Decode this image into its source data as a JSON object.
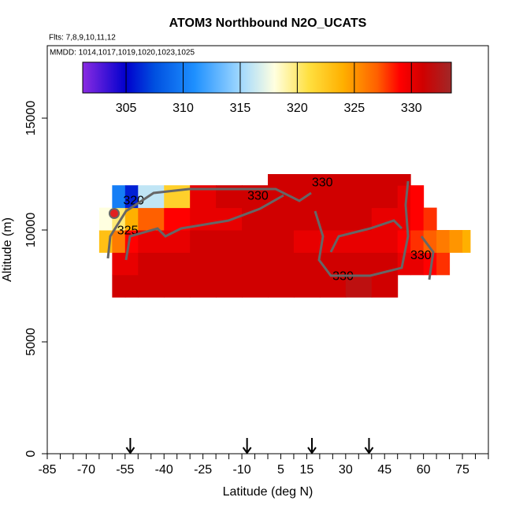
{
  "chart_data": {
    "type": "heatmap",
    "title": "ATOM3 Northbound N2O_UCATS",
    "subtitle": "Flts: 7,8,9,10,11,12",
    "annotation": "MMDD: 1014,1017,1019,1020,1023,1025",
    "x_label": "Latitude (deg N)",
    "y_label": "Altitude (m)",
    "xlim": [
      -85,
      85
    ],
    "ylim": [
      0,
      18240
    ],
    "xticks": [
      -85,
      -70,
      -55,
      -40,
      -25,
      -10,
      5,
      15,
      30,
      45,
      60,
      75
    ],
    "xticks_minor": [
      -80,
      -75,
      -65,
      -60,
      -50,
      -45,
      -35,
      -30,
      -20,
      -15,
      -5,
      0,
      10,
      20,
      25,
      35,
      40,
      50,
      55,
      65,
      70,
      80,
      85
    ],
    "yticks": [
      0,
      5000,
      10000,
      15000
    ],
    "x_edges": [
      -65,
      -60,
      -55,
      -50,
      -40,
      -30,
      -20,
      -10,
      0,
      10,
      20,
      30,
      40,
      50,
      55,
      60,
      65,
      70,
      75,
      78
    ],
    "y_edges": [
      7000,
      8000,
      9000,
      10000,
      11000,
      12000,
      12500
    ],
    "z": [
      [
        null,
        331,
        331,
        331,
        331,
        331,
        331,
        331,
        331,
        331,
        331,
        332,
        331,
        null,
        null,
        null,
        null,
        null,
        null
      ],
      [
        null,
        330,
        330,
        331,
        331,
        331,
        331,
        331,
        331,
        331,
        331,
        331,
        331,
        330,
        330,
        329,
        328,
        null,
        null
      ],
      [
        323,
        326,
        329,
        330,
        330,
        331,
        331,
        331,
        331,
        330,
        330,
        330,
        330,
        329,
        328,
        327,
        326,
        325,
        324
      ],
      [
        318,
        320,
        324,
        327,
        329,
        330,
        330,
        331,
        331,
        331,
        331,
        331,
        330,
        330,
        329,
        328,
        null,
        null,
        null
      ],
      [
        null,
        310,
        306,
        316,
        322,
        330,
        331,
        331,
        331,
        331,
        331,
        331,
        331,
        330,
        329,
        null,
        null,
        null,
        null
      ],
      [
        null,
        null,
        null,
        null,
        null,
        null,
        null,
        null,
        331,
        331,
        331,
        331,
        331,
        331,
        null,
        null,
        null,
        null,
        null
      ]
    ],
    "clim": [
      301.2,
      333.5
    ],
    "cticks": [
      305,
      310,
      315,
      320,
      325,
      330
    ],
    "colormap": {
      "stops": [
        301.2,
        305,
        307.5,
        311,
        315,
        318,
        321,
        324,
        327,
        329,
        331,
        333.5
      ],
      "colors": [
        "#8a2be2",
        "#0000cd",
        "#0050e0",
        "#1e90ff",
        "#a0d8ff",
        "#ffffe0",
        "#ffe040",
        "#ffb000",
        "#ff6000",
        "#ff0000",
        "#d00000",
        "#a02828"
      ]
    },
    "arrows": [
      -53,
      -8,
      17,
      39
    ],
    "contour_labels": [
      {
        "text": "320",
        "lat": -51.7,
        "alt": 11300
      },
      {
        "text": "325",
        "lat": -54,
        "alt": 9960
      },
      {
        "text": "330",
        "lat": -3.8,
        "alt": 11510
      },
      {
        "text": "330",
        "lat": 21,
        "alt": 12110
      },
      {
        "text": "330",
        "lat": 29,
        "alt": 7920
      },
      {
        "text": "330",
        "lat": 59,
        "alt": 8840
      }
    ]
  }
}
